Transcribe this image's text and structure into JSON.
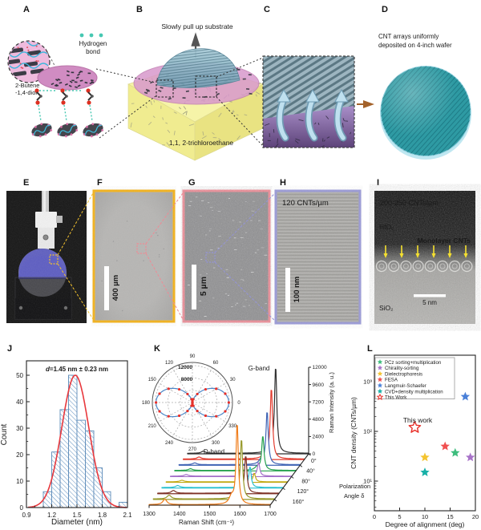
{
  "panels": {
    "a": {
      "label": "A",
      "hydrogen_bond": [
        "Hydrogen",
        "bond"
      ],
      "molecule": [
        "2-Butene",
        "-1,4-diol"
      ]
    },
    "b": {
      "label": "B",
      "caption": "Slowly pull up substrate",
      "solvent": "1,1, 2-trichloroethane"
    },
    "c": {
      "label": "C"
    },
    "d": {
      "label": "D",
      "caption": [
        "CNT arrays uniformly",
        "deposited on 4-inch wafer"
      ]
    },
    "e": {
      "label": "E"
    },
    "f": {
      "label": "F",
      "scale_bar": "400 µm"
    },
    "g": {
      "label": "G",
      "scale_bar": "5 µm"
    },
    "h": {
      "label": "H",
      "density": "120 CNTs/µm",
      "scale_bar": "100 nm"
    },
    "i": {
      "label": "I",
      "density": "200-250 CNTs/µm",
      "top_layer": "HfO₂",
      "cnt_label": "Monolayer CNTs",
      "bottom_layer": "SiO₂",
      "scale_bar": "5 nm"
    },
    "j": {
      "label": "J"
    },
    "k": {
      "label": "K",
      "g_band": "G-band",
      "d_band": "D-band"
    },
    "l": {
      "label": "L",
      "annotation": "This work"
    }
  },
  "chart_data": [
    {
      "id": "J",
      "type": "bar",
      "variant": "histogram",
      "title": "d=1.45 nm ± 0.23 nm",
      "xlabel": "Diameter (nm)",
      "ylabel": "Count",
      "xlim": [
        0.9,
        2.1
      ],
      "ylim": [
        0,
        55
      ],
      "xticks": [
        0.9,
        1.2,
        1.5,
        1.8,
        2.1
      ],
      "yticks": [
        0,
        10,
        20,
        30,
        40,
        50
      ],
      "bin_width": 0.1,
      "bins": [
        [
          1.1,
          6
        ],
        [
          1.2,
          21
        ],
        [
          1.3,
          37
        ],
        [
          1.4,
          50
        ],
        [
          1.5,
          33
        ],
        [
          1.6,
          29
        ],
        [
          1.7,
          15
        ],
        [
          1.8,
          6
        ],
        [
          2.0,
          2
        ]
      ],
      "bar_edge_color": "#5b8ab8",
      "hatch_color": "#6b98c4",
      "fit": {
        "shape": "gaussian",
        "amplitude": 50,
        "center": 1.48,
        "sigma": 0.16,
        "color": "#e8383d"
      }
    },
    {
      "id": "K",
      "type": "line",
      "variant": "waterfall3d",
      "xlabel": "Raman Shift (cm⁻¹)",
      "ylabel": "Raman Intensity (a. u.)",
      "zlabel_lines": [
        "Polarization",
        "Angle δ"
      ],
      "xlim": [
        1300,
        1700
      ],
      "xticks": [
        1300,
        1400,
        1500,
        1600,
        1700
      ],
      "ylim": [
        0,
        12000
      ],
      "yticks": [
        0,
        2400,
        4800,
        7200,
        9600,
        12000
      ],
      "ztick_labels": [
        "0°",
        "40°",
        "80°",
        "120°",
        "160°"
      ],
      "d_band_center": 1352,
      "g_band_center": 1591,
      "series": [
        {
          "angle": 0,
          "color": "#2f2f2f",
          "g_peak": 12000,
          "d_peak": 300
        },
        {
          "angle": 20,
          "color": "#e23b2e",
          "g_peak": 9800,
          "d_peak": 280
        },
        {
          "angle": 40,
          "color": "#3f63b4",
          "g_peak": 7400,
          "d_peak": 260
        },
        {
          "angle": 60,
          "color": "#27a24f",
          "g_peak": 4800,
          "d_peak": 240
        },
        {
          "angle": 80,
          "color": "#a470c9",
          "g_peak": 1900,
          "d_peak": 220
        },
        {
          "angle": 100,
          "color": "#c2ab16",
          "g_peak": 1200,
          "d_peak": 220
        },
        {
          "angle": 120,
          "color": "#28c0cf",
          "g_peak": 2900,
          "d_peak": 280
        },
        {
          "angle": 140,
          "color": "#7e3126",
          "g_peak": 5200,
          "d_peak": 380
        },
        {
          "angle": 160,
          "color": "#97992a",
          "g_peak": 8300,
          "d_peak": 520
        },
        {
          "angle": 180,
          "color": "#f07d1a",
          "g_peak": 11300,
          "d_peak": 750
        }
      ],
      "polar_inset": {
        "angle_ticks": [
          0,
          30,
          60,
          90,
          120,
          150,
          180,
          210,
          240,
          270,
          300,
          330
        ],
        "r_grid": [
          4000,
          8000,
          12000
        ],
        "r_max": 13000,
        "r_tick_labels": [
          "8000",
          "12000"
        ],
        "r_label_color": "#1e8449",
        "curve_color": "#4a86c8",
        "point_color": "#e8302a",
        "points_every_deg": 15,
        "i_max": 11500,
        "i_min": 300
      }
    },
    {
      "id": "L",
      "type": "scatter",
      "xlabel": "Degree of alignment (deg)",
      "ylabel": "CNT density (CNTs/µm)",
      "xlim": [
        0,
        20
      ],
      "xticks": [
        0,
        5,
        10,
        15,
        20
      ],
      "yscale": "log",
      "ylim": [
        2.5,
        3400
      ],
      "ytick_exponents": [
        1,
        2,
        3
      ],
      "ytick_labels": [
        "10¹",
        "10²",
        "10³"
      ],
      "legend_position": "top-left",
      "annotation": {
        "text": "This work",
        "x": 8,
        "y": 260
      },
      "series": [
        {
          "name": "PCz sorting+multiplication",
          "marker": "star",
          "filled": true,
          "color": "#3dbd7d",
          "points": [
            [
              16,
              37
            ]
          ]
        },
        {
          "name": "Chirality-sorting",
          "marker": "star",
          "filled": true,
          "color": "#a873c9",
          "points": [
            [
              19,
              30
            ]
          ]
        },
        {
          "name": "Dielectrophoresis",
          "marker": "star",
          "filled": true,
          "color": "#f4c430",
          "points": [
            [
              10,
              30
            ]
          ]
        },
        {
          "name": "FESA",
          "marker": "star",
          "filled": true,
          "color": "#f05050",
          "points": [
            [
              14,
              50
            ]
          ]
        },
        {
          "name": "Langmuir-Schaefer",
          "marker": "star",
          "filled": true,
          "color": "#4a80d8",
          "points": [
            [
              18,
              500
            ]
          ]
        },
        {
          "name": "CVD+density multiplication",
          "marker": "star",
          "filled": true,
          "color": "#17b0a7",
          "points": [
            [
              10,
              15
            ]
          ]
        },
        {
          "name": "This Work",
          "marker": "star",
          "filled": false,
          "color": "#e8302a",
          "points": [
            [
              8,
              120
            ]
          ]
        }
      ]
    }
  ]
}
